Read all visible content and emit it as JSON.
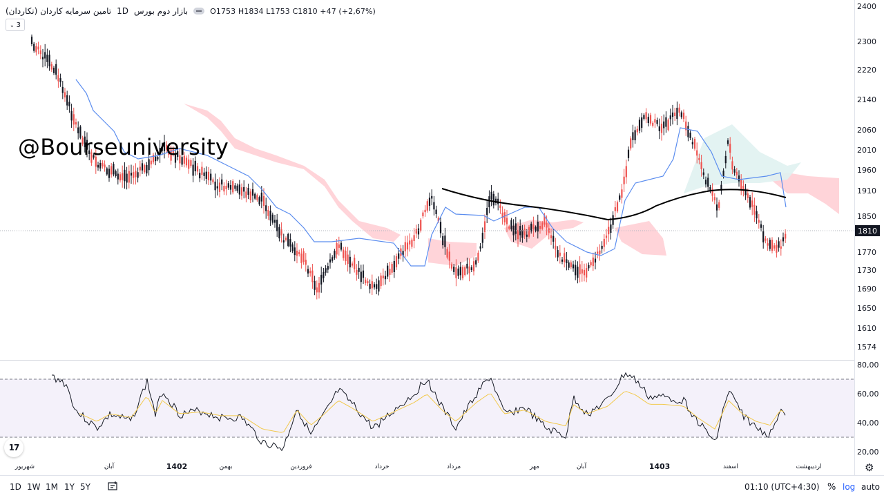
{
  "legend": {
    "symbol": "تامین سرمایه کاردان (تکاردان)",
    "interval": "1D",
    "exchange": "بازار دوم بورس",
    "ohlc": {
      "o_label": "O",
      "o": "1753",
      "h_label": "H",
      "h": "1834",
      "l_label": "L",
      "l": "1753",
      "c_label": "C",
      "c": "1810",
      "change": "+47 (+2,67%)"
    }
  },
  "indicator_badge": "3",
  "watermark": "@Bourseuniversity",
  "tv_logo": "17",
  "price_axis": {
    "labels": [
      "2400",
      "2300",
      "2220",
      "2140",
      "2060",
      "2010",
      "1960",
      "1910",
      "1850",
      "1770",
      "1730",
      "1690",
      "1650",
      "1610",
      "1574"
    ],
    "last_price": "1810"
  },
  "rsi_axis": {
    "labels": [
      "80,00",
      "60,00",
      "40,00",
      "20,00"
    ]
  },
  "time_axis": {
    "labels": [
      "شهریور",
      "آبان",
      "1402",
      "بهمن",
      "فروردین",
      "خرداد",
      "مرداد",
      "مهر",
      "آبان",
      "1403",
      "اسفند",
      "اردیبهشت"
    ]
  },
  "toolbar": {
    "timeframes": [
      "1D",
      "1W",
      "1M",
      "1Y",
      "5Y"
    ],
    "clock": "01:10 (UTC+4:30)",
    "percent": "%",
    "log": "log",
    "auto": "auto"
  },
  "colors": {
    "up": "#ef5350",
    "down": "#131722",
    "kijun": "#5b8def",
    "sma": "#000000",
    "cloud_bear": "#ffcdd2",
    "cloud_bull": "#e0f2f1",
    "rsi": "#131722",
    "rsi_ma": "#f2c94c",
    "rsi_band": "#ede7f6"
  },
  "icons": {
    "settings": "gear-icon",
    "compare": "compare-icon",
    "visibility": "eye-icon"
  }
}
